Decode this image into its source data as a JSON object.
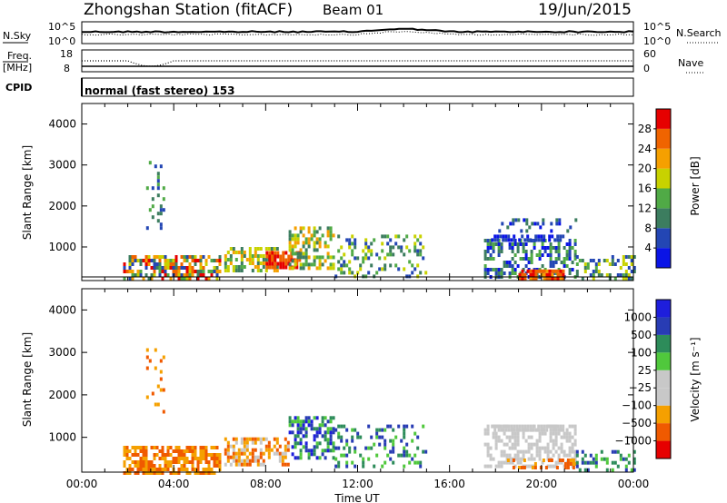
{
  "header": {
    "station_title": "Zhongshan Station (fitACF)",
    "beam": "Beam 01",
    "date": "19/Jun/2015"
  },
  "aux_panels": {
    "nsky_label": "N.Sky",
    "nsearch_label": "N.Search",
    "nsky_ticks": [
      "10^5",
      "10^0"
    ],
    "nsearch_ticks": [
      "10^5",
      "10^0"
    ],
    "freq_label": "Freq.",
    "freq_unit": "[MHz]",
    "freq_ticks": [
      "18",
      "8"
    ],
    "nave_label": "Nave",
    "nave_ticks": [
      "60",
      "0"
    ],
    "cpid_label": "CPID",
    "cpid_text": "normal (fast stereo) 153"
  },
  "colors": {
    "power": [
      "#0a14e6",
      "#2346b4",
      "#3c7d5f",
      "#50aa46",
      "#c8d200",
      "#f5a000",
      "#f06400",
      "#e60000"
    ],
    "velocity": [
      "#e60000",
      "#f05a00",
      "#f5a000",
      "#c8c8c8",
      "#c8c8c8",
      "#50c83c",
      "#2d8c5a",
      "#283cb4",
      "#1e1edc"
    ]
  },
  "chart_data": [
    {
      "type": "heatmap",
      "title": "Power",
      "ylabel": "Slant Range [km]",
      "yticks": [
        "4000",
        "3000",
        "2000",
        "1000"
      ],
      "ylim": [
        180,
        4500
      ],
      "xticks": [
        "00:00",
        "04:00",
        "08:00",
        "12:00",
        "16:00",
        "20:00",
        "00:00"
      ],
      "xlim": [
        0,
        24
      ],
      "colorbar": {
        "label": "Power [dB]",
        "ticks": [
          "28",
          "24",
          "20",
          "16",
          "12",
          "8",
          "4"
        ]
      },
      "regions": [
        {
          "x": [
            1.8,
            6.0
          ],
          "y": [
            200,
            800
          ],
          "levels": [
            1,
            7
          ],
          "dens": 0.65
        },
        {
          "x": [
            2.8,
            3.6
          ],
          "y": [
            1500,
            3100
          ],
          "levels": [
            1,
            3
          ],
          "dens": 0.15
        },
        {
          "x": [
            6.2,
            8.5
          ],
          "y": [
            400,
            1000
          ],
          "levels": [
            2,
            5
          ],
          "dens": 0.6
        },
        {
          "x": [
            8.0,
            9.5
          ],
          "y": [
            500,
            900
          ],
          "levels": [
            6,
            7
          ],
          "dens": 0.75
        },
        {
          "x": [
            9.0,
            11.0
          ],
          "y": [
            500,
            1500
          ],
          "levels": [
            2,
            5
          ],
          "dens": 0.55
        },
        {
          "x": [
            11.0,
            15.0
          ],
          "y": [
            300,
            1300
          ],
          "levels": [
            1,
            4
          ],
          "dens": 0.28
        },
        {
          "x": [
            17.5,
            21.5
          ],
          "y": [
            300,
            1200
          ],
          "levels": [
            0,
            3
          ],
          "dens": 0.5
        },
        {
          "x": [
            17.8,
            21.0
          ],
          "y": [
            1150,
            1300
          ],
          "levels": [
            0,
            1
          ],
          "dens": 0.85
        },
        {
          "x": [
            18.0,
            21.5
          ],
          "y": [
            1400,
            1700
          ],
          "levels": [
            0,
            2
          ],
          "dens": 0.25
        },
        {
          "x": [
            19.0,
            21.0
          ],
          "y": [
            250,
            450
          ],
          "levels": [
            5,
            7
          ],
          "dens": 0.65
        },
        {
          "x": [
            21.5,
            24.0
          ],
          "y": [
            200,
            800
          ],
          "levels": [
            1,
            4
          ],
          "dens": 0.4
        }
      ]
    },
    {
      "type": "heatmap",
      "title": "Velocity",
      "ylabel": "Slant Range [km]",
      "yticks": [
        "4000",
        "3000",
        "2000",
        "1000"
      ],
      "ylim": [
        180,
        4500
      ],
      "xticks": [
        "00:00",
        "04:00",
        "08:00",
        "12:00",
        "16:00",
        "20:00",
        "00:00"
      ],
      "xlim": [
        0,
        24
      ],
      "xlabel": "Time UT",
      "colorbar": {
        "label": "Velocity [m s⁻¹]",
        "ticks": [
          "1000",
          "500",
          "100",
          "25",
          "−25",
          "−100",
          "−500",
          "−1000"
        ]
      },
      "regions": [
        {
          "x": [
            1.8,
            6.0
          ],
          "y": [
            200,
            800
          ],
          "levels": [
            1,
            2
          ],
          "dens": 0.7
        },
        {
          "x": [
            2.8,
            3.6
          ],
          "y": [
            1500,
            3100
          ],
          "levels": [
            1,
            2
          ],
          "dens": 0.15
        },
        {
          "x": [
            6.2,
            9.0
          ],
          "y": [
            400,
            1000
          ],
          "levels": [
            1,
            3
          ],
          "dens": 0.6
        },
        {
          "x": [
            9.0,
            11.0
          ],
          "y": [
            500,
            1500
          ],
          "levels": [
            5,
            8
          ],
          "dens": 0.5
        },
        {
          "x": [
            11.0,
            15.0
          ],
          "y": [
            300,
            1300
          ],
          "levels": [
            5,
            7
          ],
          "dens": 0.25
        },
        {
          "x": [
            17.5,
            21.5
          ],
          "y": [
            300,
            1300
          ],
          "levels": [
            3,
            4
          ],
          "dens": 0.5
        },
        {
          "x": [
            17.8,
            21.0
          ],
          "y": [
            1150,
            1300
          ],
          "levels": [
            3,
            4
          ],
          "dens": 0.8
        },
        {
          "x": [
            18.5,
            21.5
          ],
          "y": [
            250,
            500
          ],
          "levels": [
            1,
            2
          ],
          "dens": 0.45
        },
        {
          "x": [
            21.5,
            24.0
          ],
          "y": [
            200,
            700
          ],
          "levels": [
            5,
            7
          ],
          "dens": 0.4
        }
      ]
    }
  ]
}
